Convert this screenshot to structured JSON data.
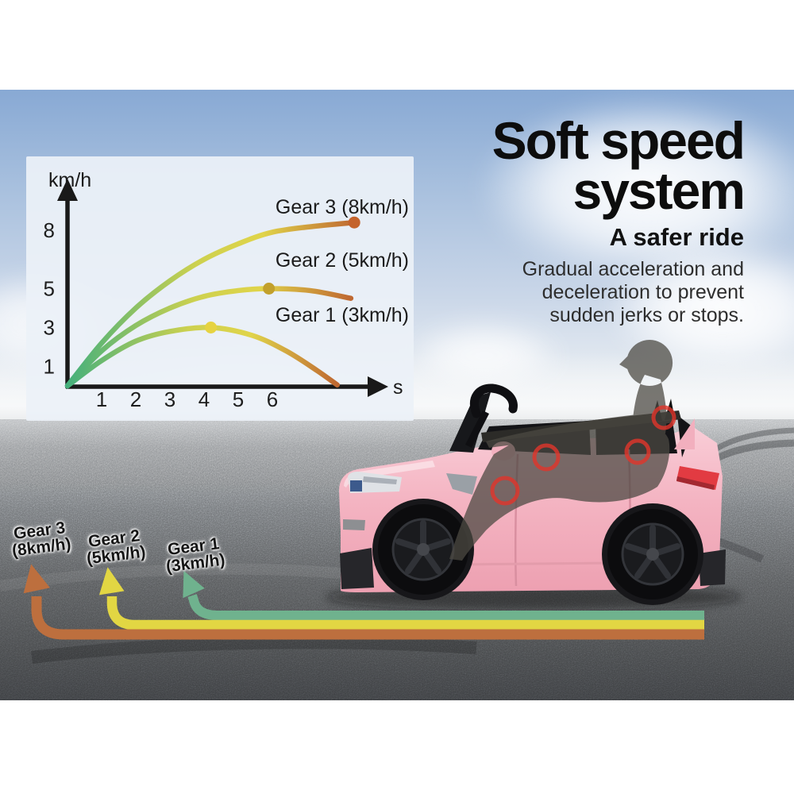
{
  "title_block": {
    "title_line1": "Soft speed",
    "title_line2": "system",
    "subtitle": "A safer ride",
    "body_line1": "Gradual acceleration and",
    "body_line2": "deceleration to prevent",
    "body_line3": "sudden jerks or stops."
  },
  "chart_data": {
    "type": "line",
    "title": "",
    "xlabel": "s",
    "ylabel": "km/h",
    "xticks": [
      1,
      2,
      3,
      4,
      5,
      6
    ],
    "yticks": [
      8,
      5,
      3,
      1
    ],
    "xlim": [
      0,
      9
    ],
    "ylim": [
      0,
      10
    ],
    "grid": false,
    "legend_position": "labels-right-of-curves",
    "curve_gradient": [
      "#45b07c",
      "#cdd14f",
      "#e0d44a",
      "#bf6831"
    ],
    "series": [
      {
        "name": "Gear 3 (8km/h)",
        "top_speed_kmh": 8,
        "points": [
          [
            0,
            0
          ],
          [
            1,
            2.2
          ],
          [
            2,
            4.0
          ],
          [
            3,
            5.4
          ],
          [
            4,
            6.5
          ],
          [
            5,
            7.3
          ],
          [
            6,
            7.9
          ],
          [
            7.2,
            8.2
          ],
          [
            8.4,
            8.4
          ]
        ],
        "marker": [
          8.4,
          8.4
        ],
        "marker_color": "#c4632c"
      },
      {
        "name": "Gear 2 (5km/h)",
        "top_speed_kmh": 5,
        "points": [
          [
            0,
            0
          ],
          [
            1,
            1.8
          ],
          [
            2,
            3.1
          ],
          [
            3,
            4.0
          ],
          [
            4,
            4.6
          ],
          [
            5,
            4.9
          ],
          [
            5.9,
            5.0
          ],
          [
            7.1,
            4.9
          ],
          [
            8.3,
            4.5
          ]
        ],
        "marker": [
          5.9,
          5.0
        ],
        "marker_color": "#c2a02c"
      },
      {
        "name": "Gear 1 (3km/h)",
        "top_speed_kmh": 3,
        "points": [
          [
            0,
            0
          ],
          [
            1,
            1.3
          ],
          [
            2,
            2.3
          ],
          [
            3,
            2.8
          ],
          [
            4.2,
            3.0
          ],
          [
            5.4,
            2.6
          ],
          [
            6.4,
            1.8
          ],
          [
            7.3,
            0.8
          ],
          [
            7.9,
            0.05
          ]
        ],
        "marker": [
          4.2,
          3.0
        ],
        "marker_color": "#e6d341"
      }
    ]
  },
  "ground_arrows": [
    {
      "label_line1": "Gear 3",
      "label_line2": "(8km/h)",
      "color": "#bd6f3e"
    },
    {
      "label_line1": "Gear 2",
      "label_line2": "(5km/h)",
      "color": "#e2d643"
    },
    {
      "label_line1": "Gear 1",
      "label_line2": "(3km/h)",
      "color": "#6fb28e"
    }
  ],
  "colors": {
    "sky_top": "#88a9d4",
    "asphalt_dark": "#3a3c3f",
    "panel": "#ecf1f8",
    "red_ring": "#e2352b",
    "car_pink": "#f4b6c3",
    "title_text": "#0d0d0d"
  }
}
